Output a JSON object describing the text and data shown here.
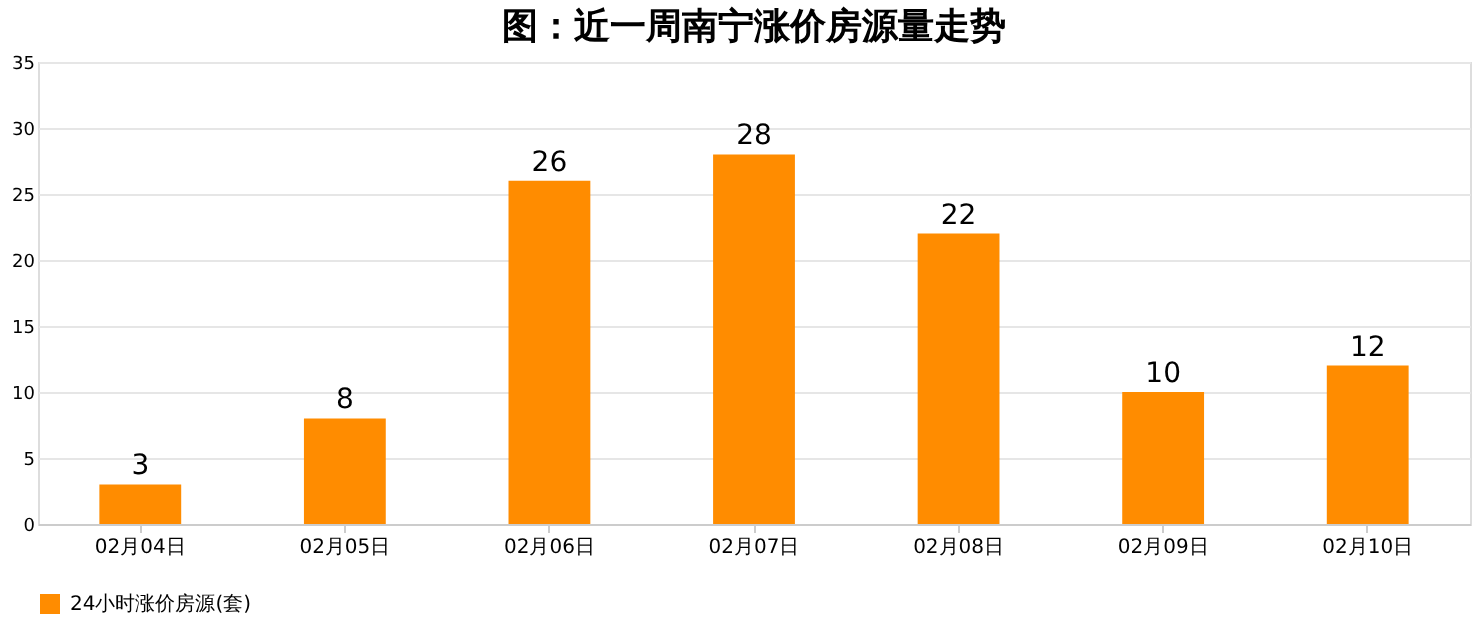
{
  "chart_data": {
    "type": "bar",
    "title": "图：近一周南宁涨价房源量走势",
    "categories": [
      "02月04日",
      "02月05日",
      "02月06日",
      "02月07日",
      "02月08日",
      "02月09日",
      "02月10日"
    ],
    "series": [
      {
        "name": "24小时涨价房源(套)",
        "color": "#ff8c00",
        "values": [
          3,
          8,
          26,
          28,
          22,
          10,
          12
        ]
      }
    ],
    "ylim": [
      0,
      35
    ],
    "yticks": [
      0,
      5,
      10,
      15,
      20,
      25,
      30,
      35
    ],
    "grid": "y",
    "legend": "bottom",
    "data_labels": true
  }
}
